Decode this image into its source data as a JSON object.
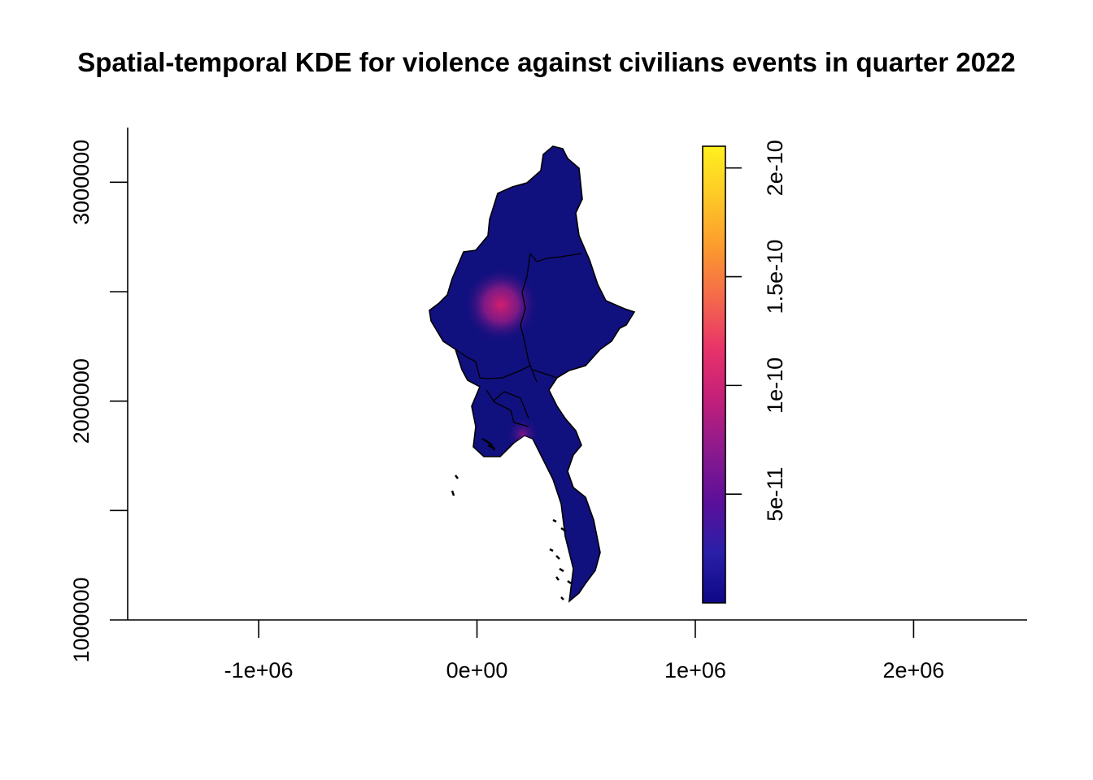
{
  "title": "Spatial-temporal KDE for violence against civilians events in quarter 2022",
  "axes": {
    "x_ticks": [
      "-1e+06",
      "0e+00",
      "1e+06",
      "2e+06"
    ],
    "y_ticks": [
      "1000000",
      "2000000",
      "3000000"
    ],
    "x_tick_values": [
      -1000000,
      0,
      1000000,
      2000000
    ],
    "y_tick_values": [
      1000000,
      2000000,
      3000000
    ],
    "y_minor_tick_values": [
      1500000,
      2500000
    ],
    "xlim": [
      -1600000,
      2520000
    ],
    "ylim": [
      1000000,
      3250000
    ]
  },
  "legend": {
    "labels": [
      "5e-11",
      "1e-10",
      "1.5e-10",
      "2e-10"
    ],
    "label_values": [
      5e-11,
      1e-10,
      1.5e-10,
      2e-10
    ],
    "range": [
      0,
      2.1e-10
    ],
    "colors": [
      "#0d0887",
      "#2a1fa8",
      "#5c0f9a",
      "#8b1a8e",
      "#c21f7a",
      "#e8336a",
      "#f5684c",
      "#fb9a2e",
      "#fdc827",
      "#fff01f"
    ]
  },
  "map": {
    "base_color": "#0f0f82",
    "hotspots": [
      {
        "x": 110000,
        "y": 2440000,
        "color": "#d21e6e"
      },
      {
        "x": 210000,
        "y": 1850000,
        "color": "#6a1486"
      }
    ]
  }
}
